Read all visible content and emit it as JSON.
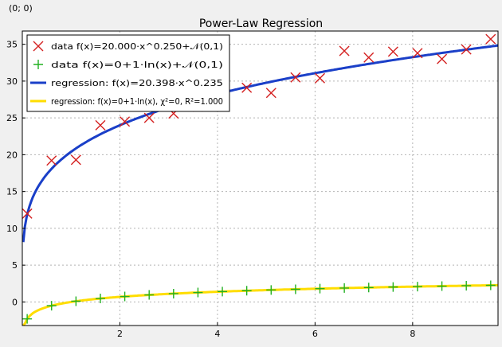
{
  "header": {
    "coordinate_readout": "(0; 0)"
  },
  "chart_data": {
    "type": "scatter",
    "title": "Power-Law Regression",
    "xlabel": "",
    "ylabel": "",
    "xlim": [
      0,
      9.75
    ],
    "ylim": [
      -3.2,
      36.8
    ],
    "grid": true,
    "legend_placement": "top-left",
    "x_ticks": [
      2,
      4,
      6,
      8
    ],
    "y_ticks": [
      0,
      5,
      10,
      15,
      20,
      25,
      30,
      35
    ],
    "series": [
      {
        "name": "data f(x)=20.000·x^0.250+𝒩(0,1)",
        "marker": "x",
        "color": "#d42020",
        "x": [
          0.1,
          0.6,
          1.1,
          1.6,
          2.1,
          2.6,
          3.1,
          3.6,
          4.1,
          4.6,
          5.1,
          5.6,
          6.1,
          6.6,
          7.1,
          7.6,
          8.1,
          8.6,
          9.1,
          9.6
        ],
        "y": [
          12.0,
          19.2,
          19.3,
          24.0,
          24.5,
          25.0,
          25.6,
          26.5,
          27.2,
          29.1,
          28.4,
          30.5,
          30.4,
          34.1,
          33.2,
          34.0,
          33.8,
          33.0,
          34.3,
          35.7
        ]
      },
      {
        "name": "data f(x)=0+1·ln(x)+𝒩(0,1)",
        "marker": "+",
        "color": "#22b022",
        "x": [
          0.1,
          0.6,
          1.1,
          1.6,
          2.1,
          2.6,
          3.1,
          3.6,
          4.1,
          4.6,
          5.1,
          5.6,
          6.1,
          6.6,
          7.1,
          7.6,
          8.1,
          8.6,
          9.1,
          9.6
        ],
        "y": [
          -2.3,
          -0.51,
          0.1,
          0.47,
          0.74,
          0.96,
          1.13,
          1.28,
          1.41,
          1.53,
          1.63,
          1.72,
          1.81,
          1.89,
          1.96,
          2.03,
          2.09,
          2.15,
          2.21,
          2.26
        ]
      },
      {
        "name": "regression: f(x)=20.398·x^0.235",
        "line": "power",
        "color": "#1a3fc8",
        "a": 20.398,
        "b": 0.235
      },
      {
        "name": "regression: f(x)=0+1·ln(x), χ²=0, R²=1.000",
        "line": "log",
        "color": "#ffdd00",
        "a": 0,
        "b": 1
      }
    ]
  }
}
